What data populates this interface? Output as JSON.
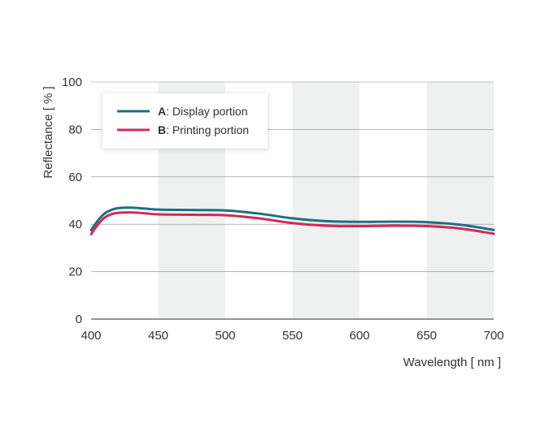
{
  "chart_data": {
    "type": "line",
    "xlabel": "Wavelength [ nm ]",
    "ylabel": "Reflectance [ % ]",
    "xlim": [
      400,
      700
    ],
    "ylim": [
      0,
      100
    ],
    "xticks": [
      400,
      450,
      500,
      550,
      600,
      650,
      700
    ],
    "yticks": [
      0,
      20,
      40,
      60,
      80,
      100
    ],
    "shaded_bands": [
      [
        450,
        500
      ],
      [
        550,
        600
      ],
      [
        650,
        700
      ]
    ],
    "grid": true,
    "legend_position": "top-left",
    "series": [
      {
        "name": "A",
        "label_suffix": ": Display portion",
        "color": "#1f6e87",
        "x": [
          400,
          405,
          410,
          415,
          420,
          430,
          440,
          450,
          475,
          500,
          525,
          550,
          575,
          600,
          625,
          650,
          675,
          700
        ],
        "y": [
          37.5,
          41.5,
          44.5,
          46.0,
          46.8,
          47.0,
          46.6,
          46.2,
          46.0,
          45.8,
          44.5,
          42.5,
          41.3,
          41.0,
          41.1,
          40.9,
          39.8,
          37.6
        ]
      },
      {
        "name": "B",
        "label_suffix": ": Printing portion",
        "color": "#d42a52",
        "x": [
          400,
          405,
          410,
          415,
          420,
          430,
          440,
          450,
          475,
          500,
          525,
          550,
          575,
          600,
          625,
          650,
          675,
          700
        ],
        "y": [
          35.8,
          39.8,
          42.8,
          44.2,
          44.8,
          45.0,
          44.6,
          44.2,
          44.0,
          43.8,
          42.5,
          40.5,
          39.4,
          39.2,
          39.4,
          39.2,
          38.2,
          36.0
        ]
      }
    ]
  }
}
